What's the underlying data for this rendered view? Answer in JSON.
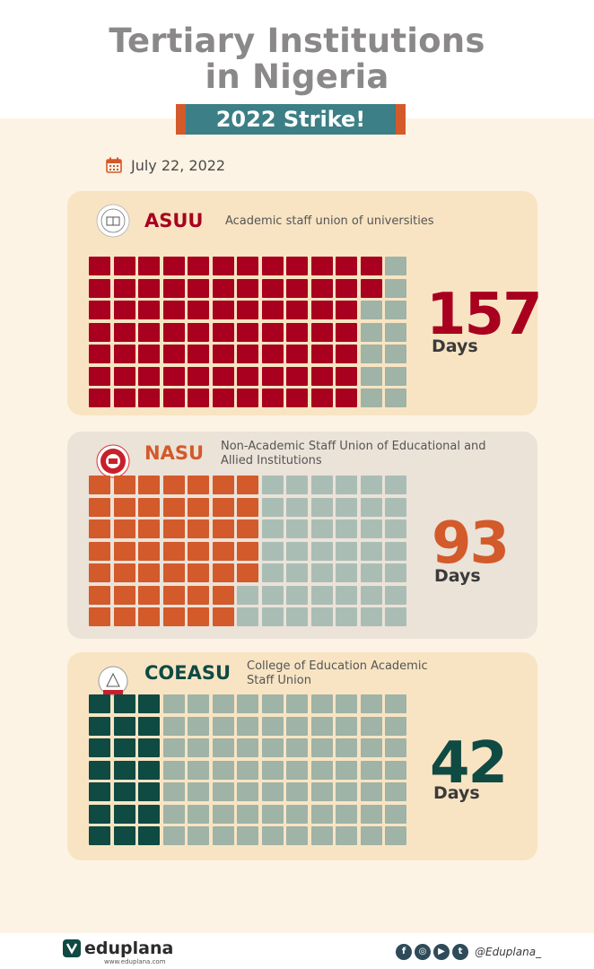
{
  "header": {
    "title_line1": "Tertiary Institutions",
    "title_line2": "in Nigeria",
    "banner": "2022 Strike!"
  },
  "date": "July 22, 2022",
  "colors": {
    "asuu": "#a8001e",
    "nasu": "#d35a2b",
    "coeasu": "#0f4a43",
    "empty": "#9fb3a7",
    "empty_alt": "#aabdb5",
    "card_cream": "#f8e4c3",
    "card_grey": "#ebe2d8",
    "banner_outer": "#d35a2b",
    "banner_inner": "#3c7f86",
    "title": "#8a8889"
  },
  "unions": [
    {
      "id": "asuu",
      "name": "ASUU",
      "full_name": "Academic staff union of universities",
      "days_number": "157",
      "days_label": "Days",
      "days_value": 157
    },
    {
      "id": "nasu",
      "name": "NASU",
      "full_name": "Non-Academic Staff Union of Educational and Allied Institutions",
      "days_number": "93",
      "days_label": "Days",
      "days_value": 93
    },
    {
      "id": "coeasu",
      "name": "COEASU",
      "full_name": "College of Education Academic Staff Union",
      "days_number": "42",
      "days_label": "Days",
      "days_value": 42
    }
  ],
  "footer": {
    "brand": "eduplana",
    "url": "www.eduplana.com",
    "handle": "@Eduplana_",
    "social_icons": [
      "facebook-icon",
      "instagram-icon",
      "youtube-icon",
      "twitter-icon"
    ]
  }
}
